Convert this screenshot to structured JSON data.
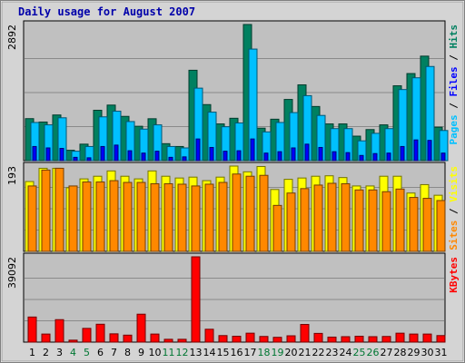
{
  "chart_data": {
    "title": "Daily usage for August 2007",
    "type": "bar",
    "categories": [
      "1",
      "2",
      "3",
      "4",
      "5",
      "6",
      "7",
      "8",
      "9",
      "10",
      "11",
      "12",
      "13",
      "14",
      "15",
      "16",
      "17",
      "18",
      "19",
      "20",
      "21",
      "22",
      "23",
      "24",
      "25",
      "26",
      "27",
      "28",
      "29",
      "30",
      "31"
    ],
    "weekend_days": [
      "4",
      "5",
      "11",
      "12",
      "18",
      "19",
      "25",
      "26"
    ],
    "colors": {
      "title": "#0000aa",
      "weekday_label": "#000000",
      "weekend_label": "#007733",
      "panel_bg": "#c0c0c0",
      "frame": "#000000",
      "hits": "#008060",
      "files": "#00c0ff",
      "pages": "#0000ff",
      "visits": "#ffff00",
      "sites": "#ff8800",
      "kbytes": "#ff0000"
    },
    "panels": [
      {
        "id": "hits",
        "max_label": "2892",
        "ymax": 2892,
        "legend": [
          {
            "text": "Pages",
            "color": "#00c0ff"
          },
          {
            "text": " / ",
            "color": "#000000"
          },
          {
            "text": "Files",
            "color": "#0000ff"
          },
          {
            "text": " / ",
            "color": "#000000"
          },
          {
            "text": "Hits",
            "color": "#008060"
          }
        ],
        "series": [
          {
            "name": "Hits",
            "values": [
              892,
              820,
              970,
              220,
              350,
              1070,
              1180,
              940,
              730,
              890,
              360,
              300,
              1920,
              1190,
              780,
              900,
              2892,
              690,
              880,
              1300,
              1610,
              1150,
              780,
              780,
              520,
              660,
              760,
              1590,
              1850,
              2220,
              710
            ]
          },
          {
            "name": "Files",
            "values": [
              810,
              760,
              910,
              200,
              300,
              930,
              1050,
              830,
              670,
              760,
              300,
              270,
              1540,
              1030,
              720,
              800,
              2370,
              610,
              810,
              1020,
              1380,
              960,
              680,
              680,
              420,
              580,
              680,
              1510,
              1760,
              2000,
              640
            ]
          },
          {
            "name": "Pages",
            "values": [
              300,
              270,
              260,
              70,
              60,
              300,
              330,
              210,
              160,
              200,
              70,
              80,
              460,
              280,
              200,
              210,
              460,
              160,
              190,
              270,
              350,
              280,
              190,
              170,
              110,
              150,
              160,
              300,
              440,
              430,
              160
            ]
          }
        ]
      },
      {
        "id": "visits",
        "max_label": "193",
        "ymax": 193,
        "legend": [
          {
            "text": "Sites",
            "color": "#ff8800"
          },
          {
            "text": " / ",
            "color": "#000000"
          },
          {
            "text": "Visits",
            "color": "#ffff00"
          }
        ],
        "series": [
          {
            "name": "Visits",
            "values": [
              158,
              188,
              188,
              144,
              164,
              170,
              182,
              170,
              164,
              182,
              170,
              166,
              168,
              160,
              168,
              193,
              180,
              192,
              140,
              163,
              166,
              170,
              171,
              167,
              148,
              148,
              170,
              170,
              132,
              151,
              127
            ]
          },
          {
            "name": "Sites",
            "values": [
              148,
              184,
              188,
              148,
              157,
              157,
              160,
              156,
              156,
              153,
              153,
              152,
              148,
              152,
              156,
              175,
              170,
              172,
              104,
              132,
              142,
              150,
              154,
              153,
              139,
              139,
              135,
              141,
              122,
              120,
              115
            ]
          }
        ]
      },
      {
        "id": "kbytes",
        "max_label": "39092",
        "ymax": 39092,
        "legend": [
          {
            "text": "KBytes",
            "color": "#ff0000"
          }
        ],
        "series": [
          {
            "name": "KBytes",
            "values": [
              11500,
              3700,
              10300,
              900,
              6300,
              8200,
              3800,
              3200,
              12800,
              3700,
              1300,
              1300,
              39092,
              5900,
              3000,
              2700,
              4100,
              2600,
              2200,
              2900,
              8100,
              4000,
              2300,
              2500,
              2700,
              2500,
              2600,
              4100,
              3700,
              3700,
              3000
            ]
          }
        ]
      }
    ]
  }
}
